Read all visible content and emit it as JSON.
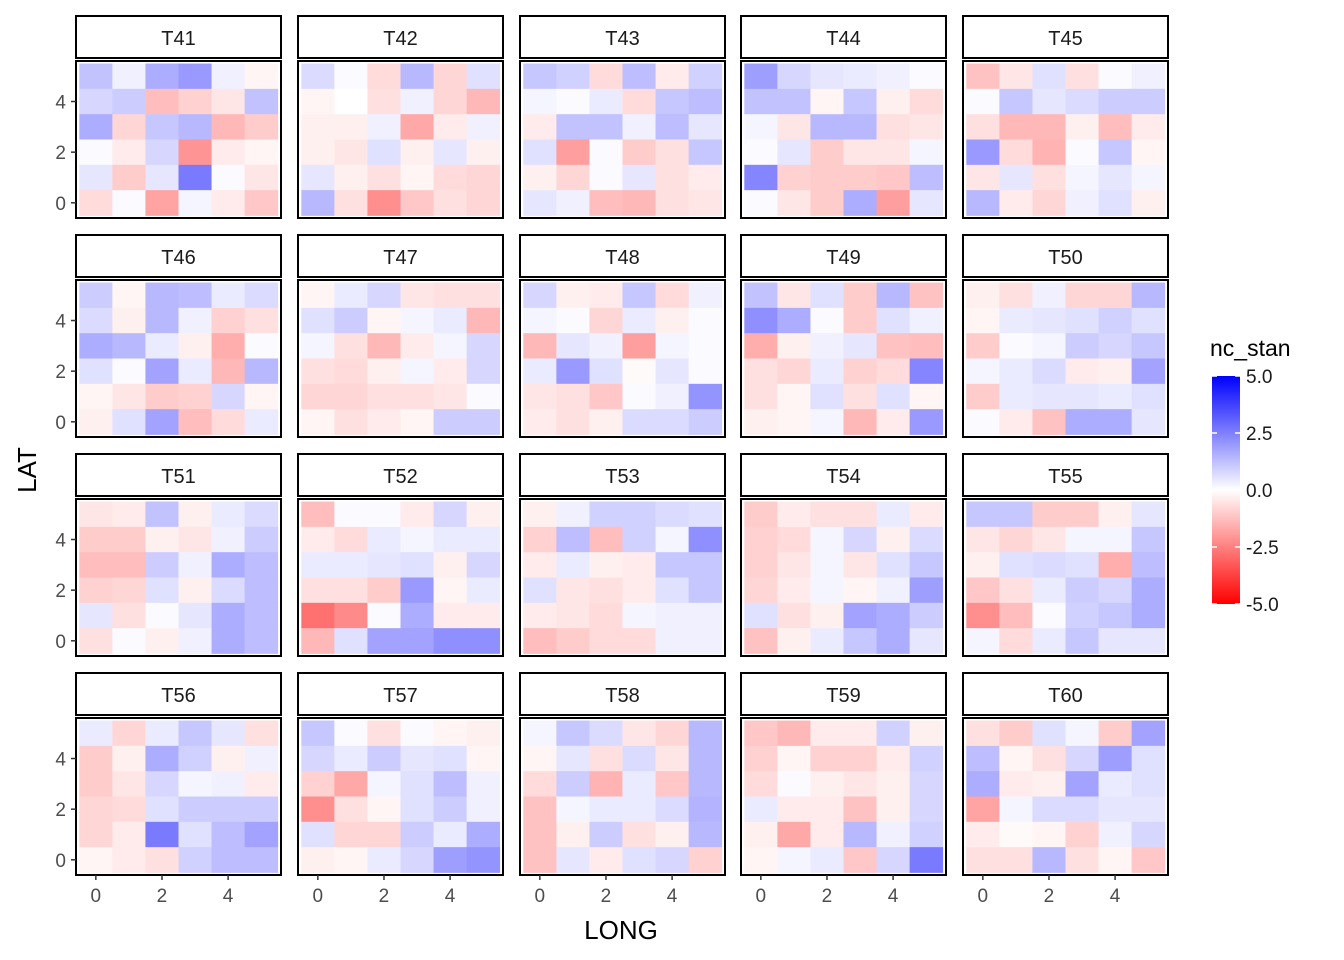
{
  "chart_data": {
    "type": "heatmap",
    "xlabel": "LONG",
    "ylabel": "LAT",
    "x_values": [
      0,
      1,
      2,
      3,
      4,
      5
    ],
    "y_values": [
      0,
      1,
      2,
      3,
      4,
      5
    ],
    "x_ticks": [
      "0",
      "2",
      "4"
    ],
    "y_ticks": [
      "0",
      "2",
      "4"
    ],
    "xlim": [
      -0.6,
      5.6
    ],
    "ylim": [
      -0.6,
      5.6
    ],
    "legend": {
      "title": "nc_stan",
      "placement": "right",
      "range": [
        -5,
        5
      ],
      "ticks": [
        "5.0",
        "2.5",
        "0.0",
        "-2.5",
        "-5.0"
      ],
      "low_color": "#ff0000",
      "mid_color": "#ffffff",
      "high_color": "#0000ff"
    },
    "value_layout": "each panel: 6 rows (LAT 5 down to 0) x 6 columns (LONG 0 to 5)",
    "panels": [
      {
        "name": "T41",
        "values": [
          [
            1.2,
            0.3,
            1.6,
            2.0,
            0.3,
            -0.2
          ],
          [
            0.8,
            1.0,
            -1.3,
            -0.9,
            -0.5,
            1.2
          ],
          [
            1.6,
            -0.8,
            1.1,
            1.4,
            -1.4,
            -1.0
          ],
          [
            0.1,
            -0.4,
            0.8,
            -2.1,
            -0.4,
            -0.2
          ],
          [
            0.5,
            -1.0,
            0.5,
            2.6,
            0.1,
            -0.5
          ],
          [
            -0.7,
            0.1,
            -1.8,
            0.2,
            -0.4,
            -1.1
          ]
        ]
      },
      {
        "name": "T42",
        "values": [
          [
            0.7,
            0.1,
            -0.7,
            1.4,
            -0.8,
            0.6
          ],
          [
            -0.2,
            0.0,
            -0.6,
            0.3,
            -0.8,
            -1.4
          ],
          [
            -0.3,
            -0.3,
            0.3,
            -1.7,
            -0.4,
            0.3
          ],
          [
            -0.3,
            -0.5,
            0.6,
            -0.3,
            0.5,
            -0.3
          ],
          [
            0.5,
            -0.3,
            -0.6,
            -0.2,
            -0.7,
            -0.8
          ],
          [
            1.4,
            -0.6,
            -2.2,
            -1.1,
            -0.6,
            -0.8
          ]
        ]
      },
      {
        "name": "T43",
        "values": [
          [
            1.1,
            0.9,
            -0.7,
            1.3,
            -0.4,
            0.9
          ],
          [
            0.2,
            0.1,
            0.4,
            -0.7,
            1.1,
            1.3
          ],
          [
            -0.4,
            1.2,
            1.2,
            0.3,
            1.3,
            0.5
          ],
          [
            0.6,
            -1.9,
            0.1,
            -1.0,
            -0.6,
            1.1
          ],
          [
            -0.3,
            -0.8,
            0.1,
            0.5,
            -0.6,
            -0.4
          ],
          [
            0.5,
            0.3,
            -1.3,
            -1.4,
            -0.6,
            -0.5
          ]
        ]
      },
      {
        "name": "T44",
        "values": [
          [
            1.9,
            0.8,
            0.5,
            0.4,
            0.3,
            0.1
          ],
          [
            1.2,
            1.2,
            -0.2,
            1.1,
            -0.3,
            -0.7
          ],
          [
            0.2,
            -0.5,
            1.4,
            1.4,
            -0.6,
            -0.5
          ],
          [
            0.1,
            0.5,
            -1.0,
            -0.5,
            -0.5,
            0.2
          ],
          [
            2.4,
            -0.9,
            -1.0,
            -1.0,
            -1.1,
            1.3
          ],
          [
            0.1,
            -0.5,
            -1.0,
            1.6,
            -1.9,
            0.5
          ]
        ]
      },
      {
        "name": "T45",
        "values": [
          [
            -1.2,
            -0.5,
            0.6,
            -0.6,
            0.1,
            0.3
          ],
          [
            0.1,
            1.1,
            0.5,
            0.7,
            1.0,
            1.0
          ],
          [
            -0.6,
            -1.4,
            -1.4,
            -0.3,
            -1.3,
            -0.4
          ],
          [
            2.0,
            -0.7,
            -1.5,
            0.1,
            1.1,
            -0.2
          ],
          [
            -0.5,
            0.5,
            -0.6,
            0.2,
            0.5,
            0.2
          ],
          [
            1.4,
            -0.4,
            -0.8,
            0.3,
            0.6,
            -0.3
          ]
        ]
      },
      {
        "name": "T46",
        "values": [
          [
            1.0,
            -0.2,
            1.4,
            1.3,
            0.4,
            0.7
          ],
          [
            0.7,
            -0.3,
            1.4,
            0.3,
            -0.9,
            -0.6
          ],
          [
            1.6,
            1.4,
            0.4,
            -0.3,
            -1.6,
            0.1
          ],
          [
            0.6,
            0.1,
            1.8,
            0.4,
            -1.4,
            1.4
          ],
          [
            -0.2,
            -0.5,
            -1.0,
            -0.9,
            0.8,
            -0.2
          ],
          [
            -0.3,
            0.6,
            1.8,
            -1.3,
            -0.7,
            0.4
          ]
        ]
      },
      {
        "name": "T47",
        "values": [
          [
            -0.2,
            0.4,
            0.8,
            -0.5,
            -0.6,
            -0.6
          ],
          [
            0.6,
            1.0,
            -0.2,
            0.2,
            0.4,
            -1.4
          ],
          [
            0.2,
            -0.6,
            -1.4,
            -0.4,
            0.2,
            0.8
          ],
          [
            -0.6,
            -0.7,
            -0.3,
            0.2,
            -0.4,
            0.8
          ],
          [
            -0.8,
            -0.8,
            -0.6,
            -0.6,
            -0.5,
            0.1
          ],
          [
            -0.2,
            -0.6,
            -0.4,
            -0.2,
            1.0,
            1.0
          ]
        ]
      },
      {
        "name": "T48",
        "values": [
          [
            0.8,
            -0.3,
            -0.4,
            1.1,
            -0.7,
            0.3
          ],
          [
            0.2,
            0.1,
            -0.8,
            0.4,
            -0.3,
            0.1
          ],
          [
            -1.4,
            0.5,
            0.3,
            -1.9,
            0.2,
            0.1
          ],
          [
            0.4,
            2.0,
            0.6,
            -0.1,
            0.5,
            0.1
          ],
          [
            -0.5,
            -0.6,
            -1.1,
            0.1,
            0.3,
            2.1
          ],
          [
            -0.4,
            -0.6,
            -0.3,
            0.7,
            0.7,
            1.0
          ]
        ]
      },
      {
        "name": "T49",
        "values": [
          [
            1.2,
            -0.5,
            0.6,
            -1.0,
            1.4,
            -1.2
          ],
          [
            2.2,
            1.6,
            0.1,
            -1.0,
            0.6,
            0.3
          ],
          [
            -1.6,
            -0.3,
            0.3,
            0.5,
            -1.2,
            -1.3
          ],
          [
            -0.6,
            -0.8,
            0.4,
            -0.9,
            -0.7,
            2.4
          ],
          [
            -0.6,
            -0.2,
            0.6,
            -0.6,
            0.6,
            -0.2
          ],
          [
            -0.3,
            -0.2,
            0.2,
            -1.4,
            -0.4,
            2.0
          ]
        ]
      },
      {
        "name": "T50",
        "values": [
          [
            -0.3,
            -0.6,
            0.3,
            -0.8,
            -0.8,
            1.4
          ],
          [
            -0.2,
            0.4,
            0.5,
            0.6,
            0.9,
            0.6
          ],
          [
            -1.0,
            0.1,
            0.2,
            1.0,
            0.8,
            1.1
          ],
          [
            0.2,
            0.4,
            0.7,
            -0.4,
            -0.3,
            1.8
          ],
          [
            -1.0,
            0.4,
            0.5,
            0.5,
            0.4,
            0.6
          ],
          [
            0.1,
            -0.4,
            -1.2,
            1.6,
            1.6,
            0.5
          ]
        ]
      },
      {
        "name": "T51",
        "values": [
          [
            -0.5,
            -0.4,
            1.2,
            -0.3,
            0.4,
            0.7
          ],
          [
            -1.0,
            -1.0,
            -0.3,
            -0.5,
            0.3,
            1.0
          ],
          [
            -1.3,
            -1.3,
            1.0,
            0.3,
            1.6,
            1.3
          ],
          [
            -0.9,
            -0.8,
            0.6,
            -0.3,
            0.7,
            1.3
          ],
          [
            0.5,
            -0.6,
            0.1,
            0.5,
            1.6,
            1.3
          ],
          [
            -0.6,
            0.1,
            -0.3,
            0.3,
            1.6,
            1.3
          ]
        ]
      },
      {
        "name": "T52",
        "values": [
          [
            -1.3,
            0.1,
            0.1,
            -0.4,
            0.8,
            -0.3
          ],
          [
            -0.4,
            -0.7,
            0.4,
            0.2,
            0.4,
            0.4
          ],
          [
            0.4,
            0.4,
            0.5,
            0.6,
            -0.3,
            0.8
          ],
          [
            -0.6,
            -0.6,
            -1.0,
            2.0,
            -0.2,
            0.4
          ],
          [
            -2.8,
            -2.3,
            0.1,
            1.6,
            -0.4,
            -0.4
          ],
          [
            -1.4,
            0.6,
            1.8,
            1.8,
            2.2,
            2.2
          ]
        ]
      },
      {
        "name": "T53",
        "values": [
          [
            -0.3,
            0.3,
            0.9,
            0.9,
            0.7,
            0.6
          ],
          [
            -0.9,
            1.3,
            -1.3,
            0.9,
            0.2,
            2.2
          ],
          [
            -0.4,
            0.4,
            -0.3,
            -0.4,
            1.1,
            1.1
          ],
          [
            0.6,
            -0.5,
            -0.6,
            -0.4,
            0.6,
            1.1
          ],
          [
            -0.4,
            -0.5,
            -0.7,
            0.2,
            0.3,
            0.3
          ],
          [
            -1.3,
            -1.0,
            -0.7,
            -0.7,
            0.3,
            0.3
          ]
        ]
      },
      {
        "name": "T54",
        "values": [
          [
            -1.0,
            -0.4,
            -0.6,
            -0.6,
            0.4,
            -0.4
          ],
          [
            -0.9,
            -0.7,
            0.2,
            0.8,
            -0.3,
            0.7
          ],
          [
            -0.9,
            -0.5,
            0.2,
            -0.5,
            0.6,
            1.1
          ],
          [
            -0.8,
            -0.4,
            0.2,
            -0.2,
            0.3,
            1.9
          ],
          [
            0.6,
            -0.6,
            -0.3,
            1.8,
            1.6,
            1.0
          ],
          [
            -1.2,
            -0.3,
            0.4,
            1.1,
            1.6,
            0.5
          ]
        ]
      },
      {
        "name": "T55",
        "values": [
          [
            1.1,
            1.1,
            -1.0,
            -1.0,
            -0.3,
            0.5
          ],
          [
            -0.5,
            -0.8,
            -0.5,
            0.2,
            0.2,
            1.1
          ],
          [
            -0.3,
            0.6,
            0.7,
            0.6,
            -1.6,
            1.3
          ],
          [
            -1.1,
            -0.6,
            0.4,
            1.0,
            0.8,
            1.6
          ],
          [
            -2.2,
            -1.3,
            0.1,
            0.9,
            1.1,
            1.6
          ],
          [
            0.2,
            -0.7,
            0.4,
            1.1,
            0.5,
            0.5
          ]
        ]
      },
      {
        "name": "T56",
        "values": [
          [
            0.4,
            -0.8,
            0.4,
            1.1,
            0.5,
            -0.6
          ],
          [
            -1.0,
            -0.3,
            1.6,
            0.9,
            -0.3,
            0.3
          ],
          [
            -1.0,
            -0.5,
            0.8,
            0.2,
            0.3,
            -0.4
          ],
          [
            -0.8,
            -0.7,
            0.6,
            1.0,
            1.0,
            1.0
          ],
          [
            -0.8,
            -0.4,
            2.6,
            0.6,
            1.3,
            1.8
          ],
          [
            -0.2,
            -0.4,
            -0.6,
            0.9,
            1.3,
            1.3
          ]
        ]
      },
      {
        "name": "T57",
        "values": [
          [
            1.1,
            0.1,
            -0.6,
            0.1,
            -0.2,
            -0.3
          ],
          [
            0.8,
            0.4,
            1.0,
            0.5,
            0.6,
            -0.2
          ],
          [
            -0.9,
            -1.7,
            0.2,
            0.6,
            1.3,
            0.3
          ],
          [
            -2.2,
            -0.6,
            -0.2,
            0.6,
            1.0,
            0.3
          ],
          [
            0.6,
            -0.8,
            -0.8,
            1.0,
            0.4,
            1.6
          ],
          [
            -0.3,
            -0.2,
            0.4,
            0.8,
            1.9,
            2.1
          ]
        ]
      },
      {
        "name": "T58",
        "values": [
          [
            0.2,
            1.1,
            0.7,
            -0.5,
            -0.8,
            1.4
          ],
          [
            -0.2,
            0.5,
            -0.6,
            0.7,
            -0.5,
            1.4
          ],
          [
            -0.7,
            1.0,
            -1.5,
            0.4,
            -1.1,
            1.4
          ],
          [
            -1.2,
            0.2,
            0.4,
            0.4,
            0.7,
            1.5
          ],
          [
            -1.2,
            -0.3,
            1.0,
            -0.6,
            -0.3,
            1.4
          ],
          [
            -1.2,
            0.5,
            -0.4,
            0.6,
            0.8,
            -0.9
          ]
        ]
      },
      {
        "name": "T59",
        "values": [
          [
            -1.1,
            -1.4,
            -0.4,
            -0.4,
            0.9,
            -0.3
          ],
          [
            -0.9,
            -0.2,
            -0.9,
            -0.9,
            -0.4,
            0.9
          ],
          [
            -0.7,
            0.1,
            -0.3,
            -0.5,
            -0.3,
            0.8
          ],
          [
            0.4,
            -0.4,
            -0.4,
            -1.2,
            -0.3,
            0.8
          ],
          [
            -0.3,
            -1.7,
            -0.4,
            1.4,
            0.3,
            0.9
          ],
          [
            -0.2,
            0.2,
            0.4,
            -1.1,
            0.8,
            2.6
          ]
        ]
      },
      {
        "name": "T60",
        "values": [
          [
            -0.6,
            -1.0,
            0.6,
            0.2,
            -1.0,
            1.8
          ],
          [
            1.3,
            -0.2,
            -0.6,
            0.8,
            1.9,
            0.6
          ],
          [
            1.6,
            -0.4,
            -0.3,
            1.8,
            0.4,
            0.6
          ],
          [
            -1.8,
            0.2,
            0.7,
            0.7,
            0.5,
            0.5
          ],
          [
            -0.4,
            -0.1,
            -0.2,
            -0.9,
            0.3,
            0.8
          ],
          [
            -0.6,
            -0.6,
            1.4,
            -0.6,
            -0.2,
            -1.1
          ]
        ]
      }
    ]
  }
}
